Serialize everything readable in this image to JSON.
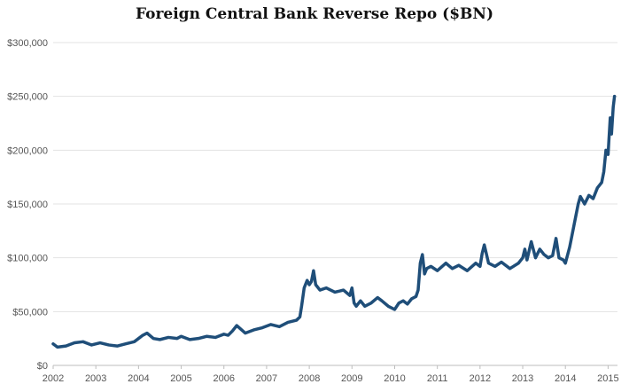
{
  "chart_data": {
    "type": "line",
    "title": "Foreign Central Bank Reverse Repo ($BN)",
    "xlabel": "",
    "ylabel": "",
    "xlim": [
      2002,
      2015.22
    ],
    "ylim": [
      0,
      300000
    ],
    "y_ticks": [
      0,
      50000,
      100000,
      150000,
      200000,
      250000,
      300000
    ],
    "y_tick_labels": [
      "$0",
      "$50,000",
      "$100,000",
      "$150,000",
      "$200,000",
      "$250,000",
      "$300,000"
    ],
    "x_ticks": [
      2002,
      2003,
      2004,
      2005,
      2006,
      2007,
      2008,
      2009,
      2010,
      2011,
      2012,
      2013,
      2014,
      2015
    ],
    "x_tick_labels": [
      "2002",
      "2003",
      "2004",
      "2005",
      "2006",
      "2007",
      "2008",
      "2009",
      "2010",
      "2011",
      "2012",
      "2013",
      "2014",
      "2015"
    ],
    "grid": "horizontal",
    "legend": "none",
    "colors": {
      "line": "#1f4e79",
      "grid": "#e3e3e3",
      "axis": "#bdbdbd"
    },
    "series": [
      {
        "x": [
          2002.0,
          2002.1,
          2002.3,
          2002.5,
          2002.7,
          2002.9,
          2003.1,
          2003.3,
          2003.5,
          2003.7,
          2003.9,
          2004.0,
          2004.1,
          2004.2,
          2004.35,
          2004.5,
          2004.7,
          2004.9,
          2005.0,
          2005.2,
          2005.4,
          2005.6,
          2005.8,
          2006.0,
          2006.1,
          2006.2,
          2006.3,
          2006.5,
          2006.7,
          2006.9,
          2007.1,
          2007.3,
          2007.5,
          2007.7,
          2007.78,
          2007.82,
          2007.88,
          2007.95,
          2008.0,
          2008.05,
          2008.1,
          2008.15,
          2008.25,
          2008.4,
          2008.6,
          2008.8,
          2008.95,
          2009.0,
          2009.05,
          2009.1,
          2009.2,
          2009.3,
          2009.45,
          2009.6,
          2009.7,
          2009.85,
          2010.0,
          2010.1,
          2010.2,
          2010.3,
          2010.4,
          2010.5,
          2010.55,
          2010.6,
          2010.65,
          2010.7,
          2010.75,
          2010.85,
          2011.0,
          2011.2,
          2011.35,
          2011.5,
          2011.7,
          2011.9,
          2012.0,
          2012.05,
          2012.1,
          2012.2,
          2012.35,
          2012.5,
          2012.7,
          2012.9,
          2013.0,
          2013.05,
          2013.1,
          2013.2,
          2013.3,
          2013.4,
          2013.5,
          2013.6,
          2013.7,
          2013.78,
          2013.85,
          2013.95,
          2014.0,
          2014.1,
          2014.2,
          2014.3,
          2014.35,
          2014.45,
          2014.55,
          2014.65,
          2014.75,
          2014.85,
          2014.9,
          2014.95,
          2015.0,
          2015.02,
          2015.05,
          2015.08,
          2015.12,
          2015.15
        ],
        "values": [
          20000,
          17000,
          18000,
          21000,
          22000,
          19000,
          21000,
          19000,
          18000,
          20000,
          22000,
          25000,
          28000,
          30000,
          25000,
          24000,
          26000,
          25000,
          27000,
          24000,
          25000,
          27000,
          26000,
          29000,
          28000,
          32000,
          37000,
          30000,
          33000,
          35000,
          38000,
          36000,
          40000,
          42000,
          45000,
          55000,
          72000,
          79000,
          75000,
          78000,
          88000,
          75000,
          70000,
          72000,
          68000,
          70000,
          65000,
          72000,
          58000,
          55000,
          60000,
          55000,
          58000,
          63000,
          60000,
          55000,
          52000,
          58000,
          60000,
          57000,
          62000,
          64000,
          70000,
          95000,
          103000,
          85000,
          90000,
          92000,
          88000,
          95000,
          90000,
          93000,
          88000,
          95000,
          92000,
          104000,
          112000,
          95000,
          92000,
          96000,
          90000,
          95000,
          100000,
          108000,
          98000,
          115000,
          100000,
          108000,
          103000,
          100000,
          102000,
          118000,
          100000,
          98000,
          95000,
          110000,
          130000,
          150000,
          157000,
          150000,
          158000,
          155000,
          165000,
          170000,
          180000,
          200000,
          196000,
          210000,
          230000,
          215000,
          240000,
          250000
        ]
      }
    ]
  }
}
